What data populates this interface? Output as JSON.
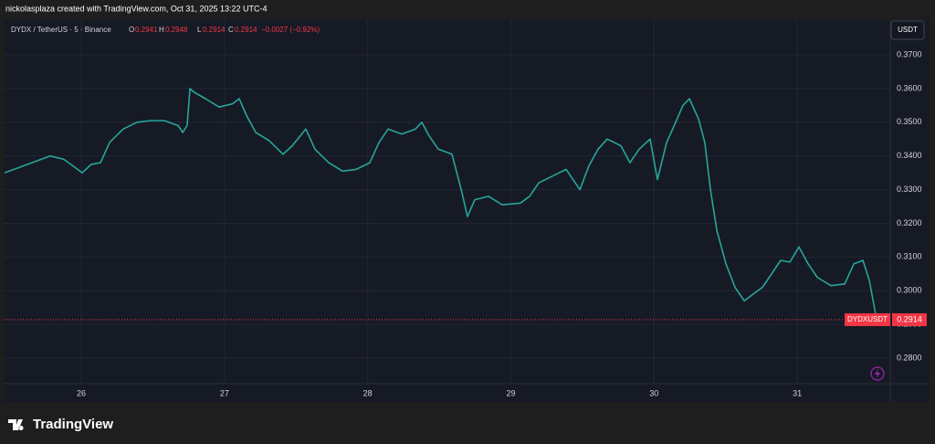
{
  "header": "nickolasplaza created with TradingView.com, Oct 31, 2025 13:22 UTC-4",
  "legend": {
    "symbol": "DYDX / TetherUS · 5 · Binance",
    "o_label": "O",
    "o": "0.2941",
    "h_label": "H",
    "h": "0.2948",
    "l_label": "L",
    "l": "0.2914",
    "c_label": "C",
    "c": "0.2914",
    "change": "−0.0027 (−0.92%)"
  },
  "currency_button": "USDT",
  "symbol_badge": "DYDXUSDT",
  "footer_logo": "TradingView",
  "chart_data": {
    "type": "line",
    "series": [
      {
        "name": "DYDXUSDT",
        "color": "#26a69a",
        "x": [
          25.464,
          25.56,
          25.687,
          25.783,
          25.878,
          25.974,
          26.006,
          26.07,
          26.134,
          26.197,
          26.293,
          26.389,
          26.484,
          26.58,
          26.676,
          26.708,
          26.739,
          26.759,
          26.784,
          26.867,
          26.963,
          27.058,
          27.103,
          27.154,
          27.218,
          27.313,
          27.409,
          27.473,
          27.568,
          27.632,
          27.728,
          27.824,
          27.919,
          28.015,
          28.079,
          28.143,
          28.238,
          28.334,
          28.378,
          28.429,
          28.493,
          28.589,
          28.653,
          28.697,
          28.748,
          28.844,
          28.94,
          29.067,
          29.131,
          29.195,
          29.29,
          29.386,
          29.482,
          29.545,
          29.609,
          29.673,
          29.769,
          29.832,
          29.896,
          29.973,
          30.024,
          30.088,
          30.151,
          30.202,
          30.247,
          30.311,
          30.355,
          30.394,
          30.438,
          30.502,
          30.566,
          30.63,
          30.693,
          30.757,
          30.821,
          30.885,
          30.949,
          31.012,
          31.076,
          31.14,
          31.236,
          31.332,
          31.396,
          31.459,
          31.504,
          31.555
        ],
        "values": [
          0.335,
          0.3365,
          0.3385,
          0.34,
          0.339,
          0.336,
          0.335,
          0.3375,
          0.338,
          0.344,
          0.348,
          0.35,
          0.3505,
          0.3505,
          0.349,
          0.347,
          0.349,
          0.36,
          0.359,
          0.357,
          0.3545,
          0.3555,
          0.357,
          0.352,
          0.347,
          0.3445,
          0.3405,
          0.343,
          0.348,
          0.342,
          0.338,
          0.3355,
          0.336,
          0.338,
          0.344,
          0.348,
          0.3465,
          0.348,
          0.35,
          0.346,
          0.342,
          0.3405,
          0.33,
          0.322,
          0.327,
          0.328,
          0.3255,
          0.326,
          0.328,
          0.332,
          0.334,
          0.336,
          0.33,
          0.337,
          0.342,
          0.345,
          0.343,
          0.338,
          0.342,
          0.345,
          0.333,
          0.344,
          0.35,
          0.355,
          0.357,
          0.351,
          0.344,
          0.33,
          0.318,
          0.308,
          0.301,
          0.297,
          0.299,
          0.301,
          0.305,
          0.309,
          0.3085,
          0.313,
          0.308,
          0.304,
          0.3015,
          0.302,
          0.308,
          0.309,
          0.303,
          0.2914
        ]
      }
    ],
    "xlim": [
      25.432,
      31.65
    ],
    "xticks": [
      26,
      27,
      28,
      29,
      30,
      31
    ],
    "ylim": [
      0.2724,
      0.3795
    ],
    "yticks": [
      {
        "value": 0.37,
        "label": "0.3700"
      },
      {
        "value": 0.36,
        "label": "0.3600"
      },
      {
        "value": 0.35,
        "label": "0.3500"
      },
      {
        "value": 0.34,
        "label": "0.3400"
      },
      {
        "value": 0.33,
        "label": "0.3300"
      },
      {
        "value": 0.32,
        "label": "0.3200"
      },
      {
        "value": 0.31,
        "label": "0.3100"
      },
      {
        "value": 0.3,
        "label": "0.3000"
      },
      {
        "value": 0.29,
        "label": "0.2900"
      },
      {
        "value": 0.28,
        "label": "0.2800"
      }
    ],
    "price_line": 0.2914,
    "grid": true
  }
}
